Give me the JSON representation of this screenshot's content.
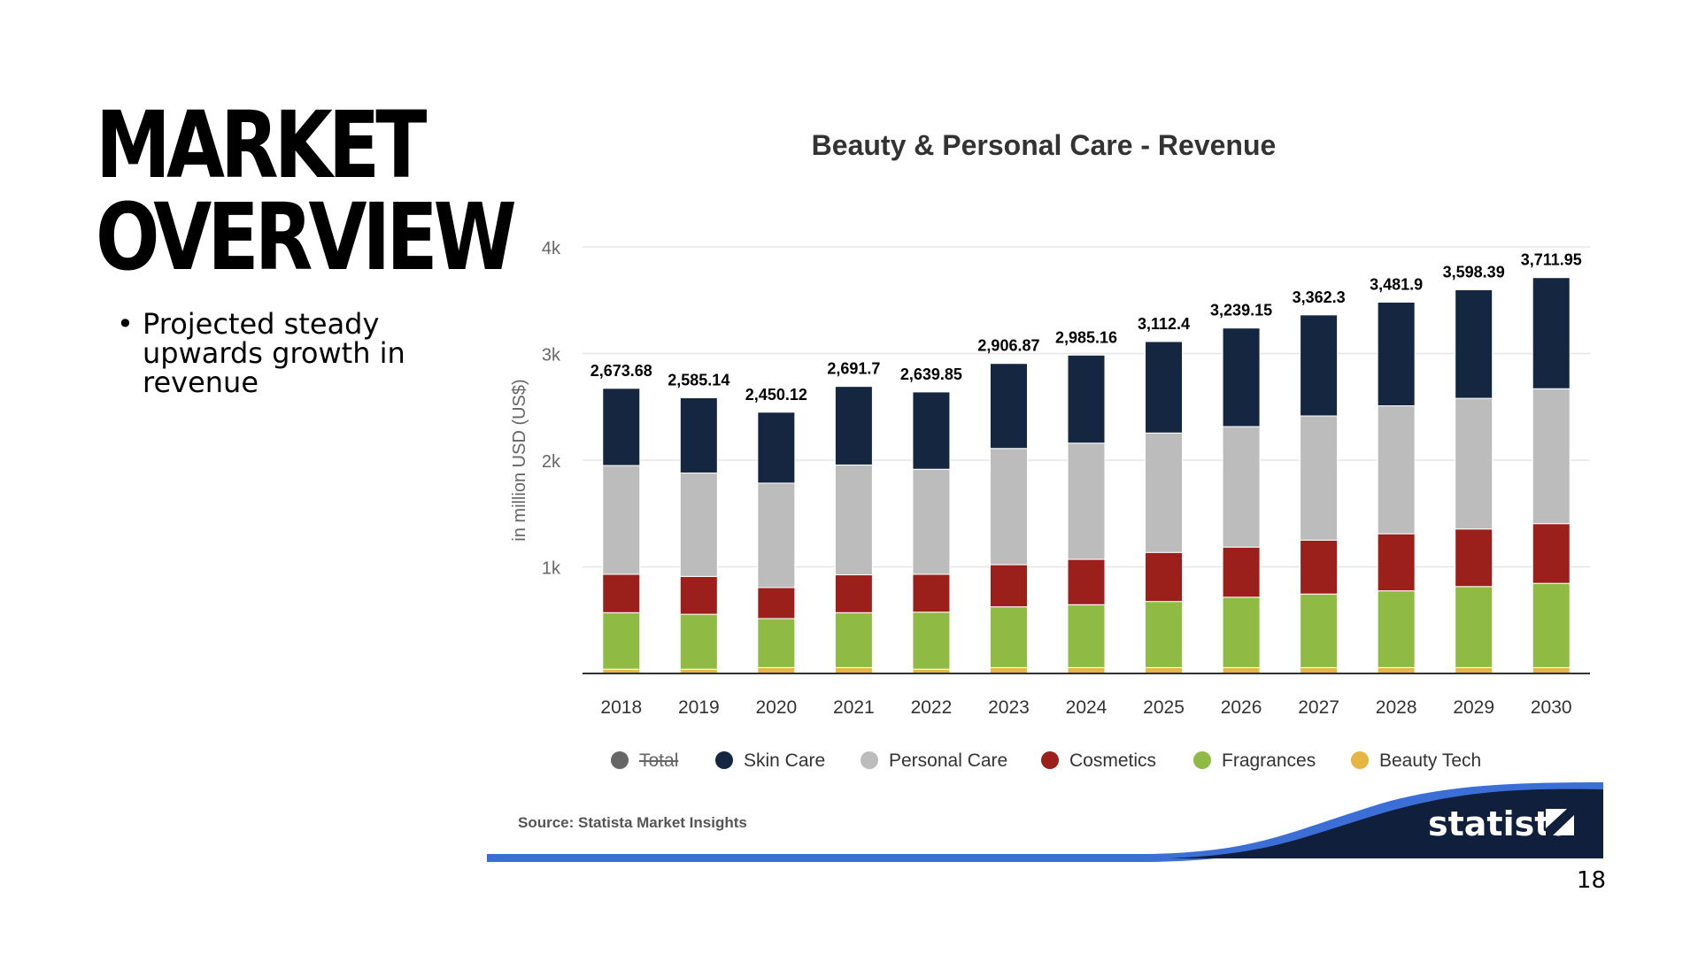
{
  "slide": {
    "title_lines": [
      "MARKET",
      "OVERVIEW"
    ],
    "bullets": [
      "Projected steady upwards growth in revenue"
    ],
    "page_number": "18"
  },
  "brand": {
    "name": "statista",
    "source": "Source: Statista Market Insights"
  },
  "chart_data": {
    "type": "bar",
    "stacked": true,
    "title": "Beauty & Personal Care - Revenue",
    "xlabel": "",
    "ylabel": "in million USD (US$)",
    "ylim": [
      0,
      4000
    ],
    "yticks": [
      1000,
      2000,
      3000,
      4000
    ],
    "ytick_labels": [
      "1k",
      "2k",
      "3k",
      "4k"
    ],
    "grid": true,
    "legend_position": "bottom",
    "categories": [
      "2018",
      "2019",
      "2020",
      "2021",
      "2022",
      "2023",
      "2024",
      "2025",
      "2026",
      "2027",
      "2028",
      "2029",
      "2030"
    ],
    "totals": [
      2673.68,
      2585.14,
      2450.12,
      2691.7,
      2639.85,
      2906.87,
      2985.16,
      3112.4,
      3239.15,
      3362.3,
      3481.9,
      3598.39,
      3711.95
    ],
    "total_labels": [
      "2,673.68",
      "2,585.14",
      "2,450.12",
      "2,691.7",
      "2,639.85",
      "2,906.87",
      "2,985.16",
      "3,112.4",
      "3,239.15",
      "3,362.3",
      "3,481.9",
      "3,598.39",
      "3,711.95"
    ],
    "legend": [
      {
        "name": "Total",
        "color": "#666666",
        "hidden": true
      },
      {
        "name": "Skin Care",
        "color": "#142640"
      },
      {
        "name": "Personal Care",
        "color": "#bcbcbc"
      },
      {
        "name": "Cosmetics",
        "color": "#9b1f1b"
      },
      {
        "name": "Fragrances",
        "color": "#8fbb45"
      },
      {
        "name": "Beauty Tech",
        "color": "#e6b542"
      }
    ],
    "series": [
      {
        "name": "Beauty Tech",
        "color": "#e6b542",
        "values": [
          40,
          40,
          55,
          55,
          40,
          55,
          55,
          55,
          55,
          55,
          55,
          55,
          55
        ]
      },
      {
        "name": "Fragrances",
        "color": "#8fbb45",
        "values": [
          530,
          515,
          460,
          515,
          535,
          570,
          590,
          620,
          660,
          690,
          720,
          760,
          790
        ]
      },
      {
        "name": "Cosmetics",
        "color": "#9b1f1b",
        "values": [
          360,
          355,
          290,
          355,
          355,
          395,
          425,
          460,
          470,
          505,
          535,
          540,
          560
        ]
      },
      {
        "name": "Personal Care",
        "color": "#bcbcbc",
        "values": [
          1020,
          970,
          980,
          1030,
          985,
          1090,
          1090,
          1120,
          1130,
          1165,
          1200,
          1225,
          1265
        ]
      },
      {
        "name": "Skin Care",
        "color": "#142640",
        "values": [
          723.68,
          705.14,
          665.12,
          736.7,
          724.85,
          796.87,
          825.16,
          857.4,
          924.15,
          947.3,
          971.9,
          1018.39,
          1041.95
        ]
      }
    ]
  }
}
